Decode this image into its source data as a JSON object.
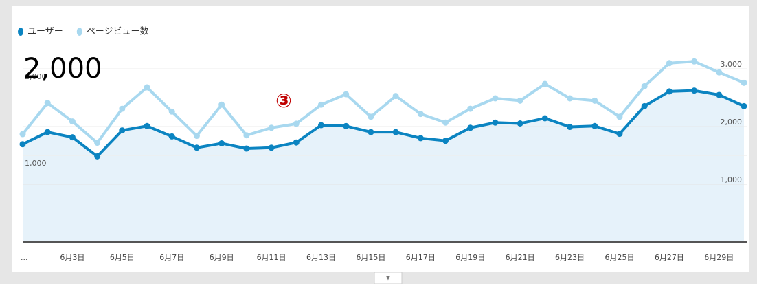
{
  "chart_data": {
    "type": "line",
    "annotations": [
      "2,000",
      "③"
    ],
    "categories": [
      "...",
      null,
      "6月3日",
      null,
      "6月5日",
      null,
      "6月7日",
      null,
      "6月9日",
      null,
      "6月11日",
      null,
      "6月13日",
      null,
      "6月15日",
      null,
      "6月17日",
      null,
      "6月19日",
      null,
      "6月21日",
      null,
      "6月23日",
      null,
      "6月25日",
      null,
      "6月27日",
      null,
      "6月29日",
      null
    ],
    "series": [
      {
        "name": "ユーザー",
        "color": "#0b84c1",
        "axis": "y",
        "values": [
          1130,
          1270,
          1210,
          990,
          1290,
          1340,
          1220,
          1090,
          1140,
          1080,
          1090,
          1150,
          1350,
          1340,
          1270,
          1270,
          1200,
          1170,
          1320,
          1380,
          1370,
          1430,
          1330,
          1340,
          1250,
          1570,
          1740,
          1750,
          1700,
          1570
        ]
      },
      {
        "name": "ページビュー数",
        "color": "#a8d8ef",
        "axis": "y2",
        "values": [
          1870,
          2410,
          2090,
          1720,
          2310,
          2680,
          2260,
          1840,
          2380,
          1850,
          1980,
          2050,
          2380,
          2560,
          2170,
          2530,
          2220,
          2070,
          2310,
          2490,
          2450,
          2740,
          2490,
          2450,
          2170,
          2700,
          3100,
          3130,
          2940,
          2760
        ]
      }
    ],
    "area_color": "#e6f2fa",
    "ylim": [
      0,
      2200
    ],
    "yticks": [
      {
        "value": 1000,
        "label": "1,000"
      },
      {
        "value": 2000,
        "label": "2,000"
      }
    ],
    "y2lim": [
      0,
      3300
    ],
    "y2ticks": [
      {
        "value": 1000,
        "label": "1,000"
      },
      {
        "value": 2000,
        "label": "2,000"
      },
      {
        "value": 3000,
        "label": "3,000"
      }
    ],
    "grid": true
  }
}
